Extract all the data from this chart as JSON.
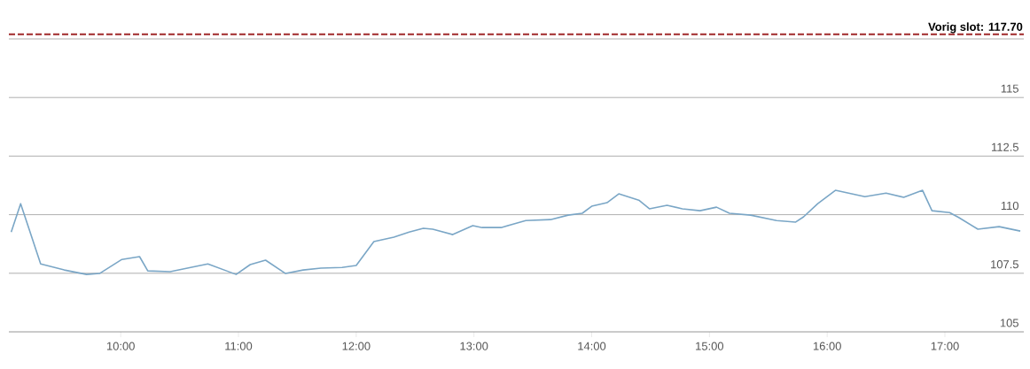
{
  "chart_data": {
    "type": "line",
    "x": [
      9.07,
      9.15,
      9.32,
      9.52,
      9.71,
      9.82,
      10.01,
      10.16,
      10.23,
      10.42,
      10.74,
      10.98,
      11.1,
      11.23,
      11.4,
      11.55,
      11.7,
      11.88,
      12.0,
      12.15,
      12.32,
      12.45,
      12.57,
      12.65,
      12.82,
      12.99,
      13.07,
      13.23,
      13.44,
      13.65,
      13.8,
      13.92,
      14.0,
      14.13,
      14.23,
      14.4,
      14.49,
      14.64,
      14.77,
      14.92,
      15.06,
      15.17,
      15.35,
      15.57,
      15.73,
      15.8,
      15.92,
      16.07,
      16.32,
      16.5,
      16.65,
      16.81,
      16.89,
      17.04,
      17.12,
      17.28,
      17.46,
      17.64
    ],
    "series": [
      {
        "color": "#7aa6c6",
        "values": [
          109.26,
          110.47,
          107.9,
          107.64,
          107.45,
          107.49,
          108.09,
          108.21,
          107.6,
          107.57,
          107.9,
          107.45,
          107.87,
          108.06,
          107.49,
          107.64,
          107.72,
          107.75,
          107.83,
          108.85,
          109.04,
          109.26,
          109.42,
          109.38,
          109.15,
          109.53,
          109.45,
          109.45,
          109.75,
          109.79,
          109.98,
          110.06,
          110.36,
          110.51,
          110.89,
          110.62,
          110.25,
          110.4,
          110.25,
          110.17,
          110.32,
          110.06,
          109.98,
          109.75,
          109.68,
          109.91,
          110.47,
          111.04,
          110.77,
          110.92,
          110.74,
          111.04,
          110.17,
          110.09,
          109.87,
          109.38,
          109.49,
          109.3
        ]
      }
    ],
    "xlim": [
      9.05,
      17.67
    ],
    "xticks": [
      {
        "value": 10,
        "label": "10:00"
      },
      {
        "value": 11,
        "label": "11:00"
      },
      {
        "value": 12,
        "label": "12:00"
      },
      {
        "value": 13,
        "label": "13:00"
      },
      {
        "value": 14,
        "label": "14:00"
      },
      {
        "value": 15,
        "label": "15:00"
      },
      {
        "value": 16,
        "label": "16:00"
      },
      {
        "value": 17,
        "label": "17:00"
      }
    ],
    "ylim": [
      105,
      117.5
    ],
    "yticks": [
      105,
      107.5,
      110,
      112.5,
      115,
      {
        "value": 117.5,
        "label": null
      }
    ],
    "grid": "y",
    "marker": "none",
    "line_style": "solid",
    "ref_lines": [
      {
        "axis": "y",
        "value": 117.7,
        "label": "Vorig slot: 117.70",
        "color": "#a0282a",
        "line_style": "dashed"
      }
    ]
  }
}
